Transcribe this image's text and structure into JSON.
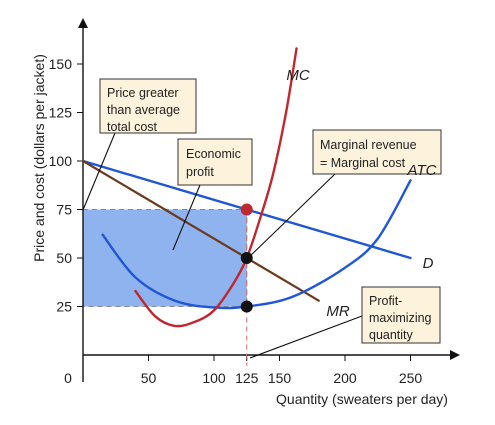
{
  "chart_data": {
    "type": "line",
    "xlabel": "Quantity (sweaters per day)",
    "ylabel": "Price and cost (dollars per jacket)",
    "xlim": [
      0,
      270
    ],
    "ylim": [
      0,
      160
    ],
    "x_ticks": [
      "0",
      "50",
      "100",
      "125",
      "150",
      "200",
      "250"
    ],
    "x_tick_values": [
      0,
      50,
      100,
      125,
      150,
      200,
      250
    ],
    "y_ticks": [
      "25",
      "50",
      "75",
      "100",
      "125",
      "150"
    ],
    "y_tick_values": [
      25,
      50,
      75,
      100,
      125,
      150
    ],
    "highlight_tick": "125",
    "series": [
      {
        "name": "D",
        "color": "#1f57d6",
        "points": [
          [
            0,
            100
          ],
          [
            250,
            50
          ]
        ]
      },
      {
        "name": "MR",
        "color": "#6b3b1f",
        "points": [
          [
            0,
            100
          ],
          [
            180,
            28
          ]
        ]
      },
      {
        "name": "ATC",
        "color": "#1f57d6",
        "points": [
          [
            15,
            62
          ],
          [
            40,
            40
          ],
          [
            70,
            28
          ],
          [
            100,
            24.5
          ],
          [
            125,
            25
          ],
          [
            160,
            30
          ],
          [
            200,
            45
          ],
          [
            225,
            60
          ],
          [
            250,
            90
          ]
        ]
      },
      {
        "name": "MC",
        "color": "#c0282f",
        "points": [
          [
            40,
            33
          ],
          [
            55,
            20
          ],
          [
            70,
            15
          ],
          [
            85,
            17
          ],
          [
            100,
            23
          ],
          [
            115,
            37
          ],
          [
            125,
            50
          ],
          [
            135,
            70
          ],
          [
            145,
            93
          ],
          [
            155,
            125
          ],
          [
            163,
            158
          ]
        ]
      }
    ],
    "points": [
      {
        "x": 125,
        "y": 75,
        "color": "#c0282f"
      },
      {
        "x": 125,
        "y": 50,
        "color": "#111111"
      },
      {
        "x": 125,
        "y": 25,
        "color": "#111111"
      }
    ],
    "profit_area": {
      "x": [
        0,
        125
      ],
      "y": [
        25,
        75
      ],
      "color": "#8fb3ee"
    },
    "annotations": [
      {
        "text": [
          "Price greater",
          "than average",
          "total cost"
        ]
      },
      {
        "text": [
          "Economic",
          "profit"
        ]
      },
      {
        "text": [
          "Marginal revenue",
          "= Marginal cost"
        ]
      },
      {
        "text": [
          "Profit-",
          "maximizing",
          "quantity"
        ]
      }
    ],
    "grid": false,
    "legend": "none"
  }
}
